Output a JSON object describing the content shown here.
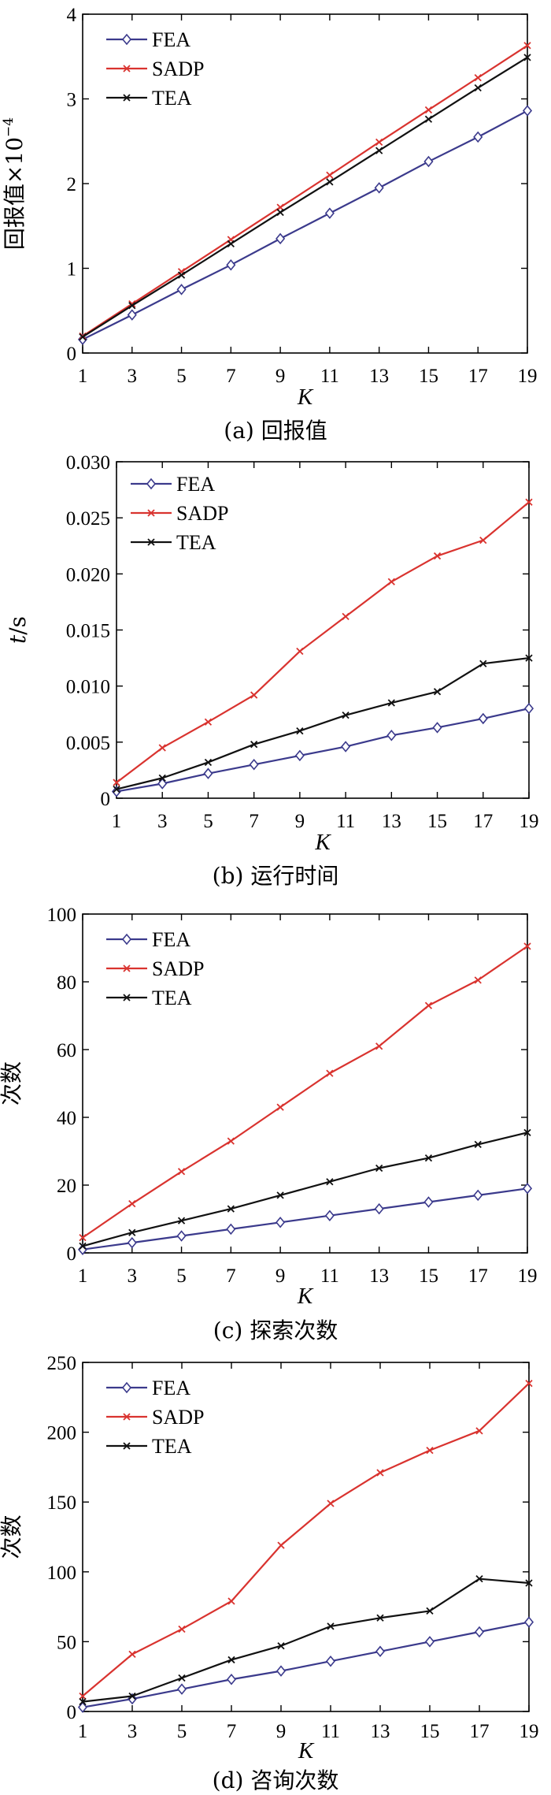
{
  "colors": {
    "FEA": "#3b3a8c",
    "SADP": "#d9332f",
    "TEA": "#111111"
  },
  "chart_data": [
    {
      "type": "line",
      "caption": "(a) 回报值",
      "xlabel": "K",
      "ylabel": "回报值×10",
      "ylabel_exponent": "−4",
      "x": [
        1,
        3,
        5,
        7,
        9,
        11,
        13,
        15,
        17,
        19
      ],
      "xlim": [
        1,
        19
      ],
      "ylim": [
        0,
        4
      ],
      "yticks": [
        "0",
        "1",
        "2",
        "3",
        "4"
      ],
      "series": [
        {
          "name": "FEA",
          "marker": "diamond",
          "values": [
            0.16,
            0.45,
            0.75,
            1.04,
            1.35,
            1.65,
            1.95,
            2.26,
            2.55,
            2.86
          ]
        },
        {
          "name": "SADP",
          "marker": "cross",
          "values": [
            0.2,
            0.58,
            0.96,
            1.34,
            1.72,
            2.1,
            2.49,
            2.87,
            3.25,
            3.63
          ]
        },
        {
          "name": "TEA",
          "marker": "cross",
          "values": [
            0.19,
            0.56,
            0.92,
            1.29,
            1.66,
            2.02,
            2.39,
            2.76,
            3.13,
            3.49
          ]
        }
      ]
    },
    {
      "type": "line",
      "caption": "(b) 运行时间",
      "xlabel": "K",
      "ylabel": "t/s",
      "x": [
        1,
        3,
        5,
        7,
        9,
        11,
        13,
        15,
        17,
        19
      ],
      "xlim": [
        1,
        19
      ],
      "ylim": [
        0,
        0.03
      ],
      "yticks": [
        "0",
        "0.005",
        "0.010",
        "0.015",
        "0.020",
        "0.025",
        "0.030"
      ],
      "series": [
        {
          "name": "FEA",
          "marker": "diamond",
          "values": [
            0.0006,
            0.0013,
            0.0022,
            0.003,
            0.0038,
            0.0046,
            0.0056,
            0.0063,
            0.0071,
            0.008
          ]
        },
        {
          "name": "SADP",
          "marker": "cross",
          "values": [
            0.0014,
            0.0045,
            0.0068,
            0.0092,
            0.0131,
            0.0162,
            0.0193,
            0.0216,
            0.023,
            0.0264
          ]
        },
        {
          "name": "TEA",
          "marker": "cross",
          "values": [
            0.0008,
            0.0018,
            0.0032,
            0.0048,
            0.006,
            0.0074,
            0.0085,
            0.0095,
            0.012,
            0.0125
          ]
        }
      ]
    },
    {
      "type": "line",
      "caption": "(c) 探索次数",
      "xlabel": "K",
      "ylabel": "次数",
      "x": [
        1,
        3,
        5,
        7,
        9,
        11,
        13,
        15,
        17,
        19
      ],
      "xlim": [
        1,
        19
      ],
      "ylim": [
        0,
        100
      ],
      "yticks": [
        "0",
        "20",
        "40",
        "60",
        "80",
        "100"
      ],
      "series": [
        {
          "name": "FEA",
          "marker": "diamond",
          "values": [
            1,
            3,
            5,
            7,
            9,
            11,
            13,
            15,
            17,
            19
          ]
        },
        {
          "name": "SADP",
          "marker": "cross",
          "values": [
            4.5,
            14.5,
            24,
            33,
            43,
            53,
            61,
            73,
            80.5,
            90.5
          ]
        },
        {
          "name": "TEA",
          "marker": "cross",
          "values": [
            2,
            6,
            9.5,
            13,
            17,
            21,
            25,
            28,
            32,
            35.5
          ]
        }
      ]
    },
    {
      "type": "line",
      "caption": "(d) 咨询次数",
      "xlabel": "K",
      "ylabel": "次数",
      "x": [
        1,
        3,
        5,
        7,
        9,
        11,
        13,
        15,
        17,
        19
      ],
      "xlim": [
        1,
        19
      ],
      "ylim": [
        0,
        250
      ],
      "yticks": [
        "0",
        "50",
        "100",
        "150",
        "200",
        "250"
      ],
      "series": [
        {
          "name": "FEA",
          "marker": "diamond",
          "values": [
            3,
            9,
            16,
            23,
            29,
            36,
            43,
            50,
            57,
            64
          ]
        },
        {
          "name": "SADP",
          "marker": "cross",
          "values": [
            11,
            41,
            59,
            79,
            119,
            149,
            171,
            187,
            201,
            235
          ]
        },
        {
          "name": "TEA",
          "marker": "cross",
          "values": [
            7,
            11,
            24,
            37,
            47,
            61,
            67,
            72,
            95,
            92
          ]
        }
      ]
    }
  ]
}
